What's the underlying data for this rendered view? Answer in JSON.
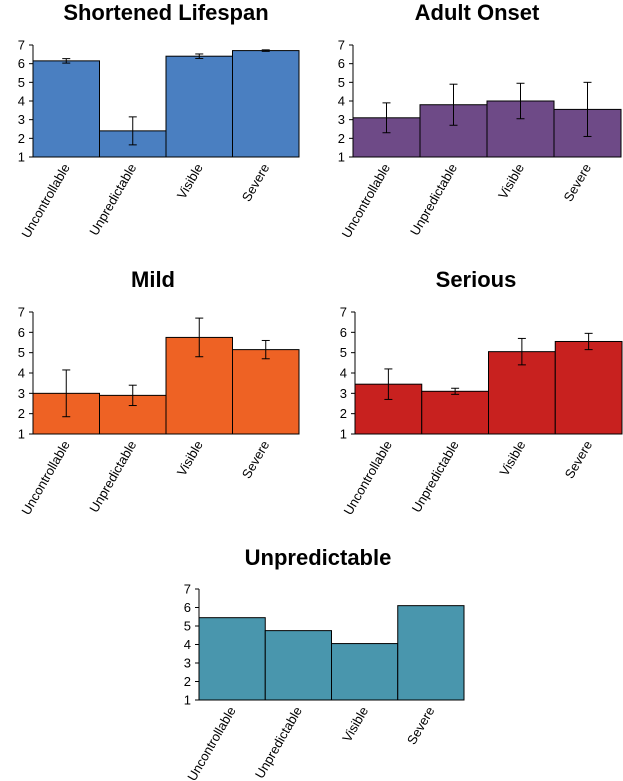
{
  "chart_data": [
    {
      "type": "bar",
      "title": "Shortened Lifespan",
      "categories": [
        "Uncontrollable",
        "Unpredictable",
        "Visible",
        "Severe"
      ],
      "values": [
        6.15,
        2.4,
        6.4,
        6.7
      ],
      "errors": [
        0.12,
        0.75,
        0.12,
        0.04
      ],
      "ylim": [
        1,
        7
      ],
      "yticks": [
        1,
        2,
        3,
        4,
        5,
        6,
        7
      ],
      "color": "#4a7fc1"
    },
    {
      "type": "bar",
      "title": "Adult Onset",
      "categories": [
        "Uncontrollable",
        "Unpredictable",
        "Visible",
        "Severe"
      ],
      "values": [
        3.1,
        3.8,
        4.0,
        3.55
      ],
      "errors": [
        0.8,
        1.1,
        0.95,
        1.45
      ],
      "ylim": [
        1,
        7
      ],
      "yticks": [
        1,
        2,
        3,
        4,
        5,
        6,
        7
      ],
      "color": "#6e4a87"
    },
    {
      "type": "bar",
      "title": "Mild",
      "categories": [
        "Uncontrollable",
        "Unpredictable",
        "Visible",
        "Severe"
      ],
      "values": [
        3.0,
        2.9,
        5.75,
        5.15
      ],
      "errors": [
        1.15,
        0.5,
        0.95,
        0.45
      ],
      "ylim": [
        1,
        7
      ],
      "yticks": [
        1,
        2,
        3,
        4,
        5,
        6,
        7
      ],
      "color": "#ee6224"
    },
    {
      "type": "bar",
      "title": "Serious",
      "categories": [
        "Uncontrollable",
        "Unpredictable",
        "Visible",
        "Severe"
      ],
      "values": [
        3.45,
        3.1,
        5.05,
        5.55
      ],
      "errors": [
        0.75,
        0.15,
        0.65,
        0.4
      ],
      "ylim": [
        1,
        7
      ],
      "yticks": [
        1,
        2,
        3,
        4,
        5,
        6,
        7
      ],
      "color": "#c8211f"
    },
    {
      "type": "bar",
      "title": "Unpredictable",
      "categories": [
        "Uncontrollable",
        "Unpredictable",
        "Visible",
        "Severe"
      ],
      "values": [
        5.45,
        4.75,
        4.05,
        6.1
      ],
      "errors": [
        0,
        0,
        0,
        0
      ],
      "ylim": [
        1,
        7
      ],
      "yticks": [
        1,
        2,
        3,
        4,
        5,
        6,
        7
      ],
      "color": "#4996ad"
    }
  ]
}
